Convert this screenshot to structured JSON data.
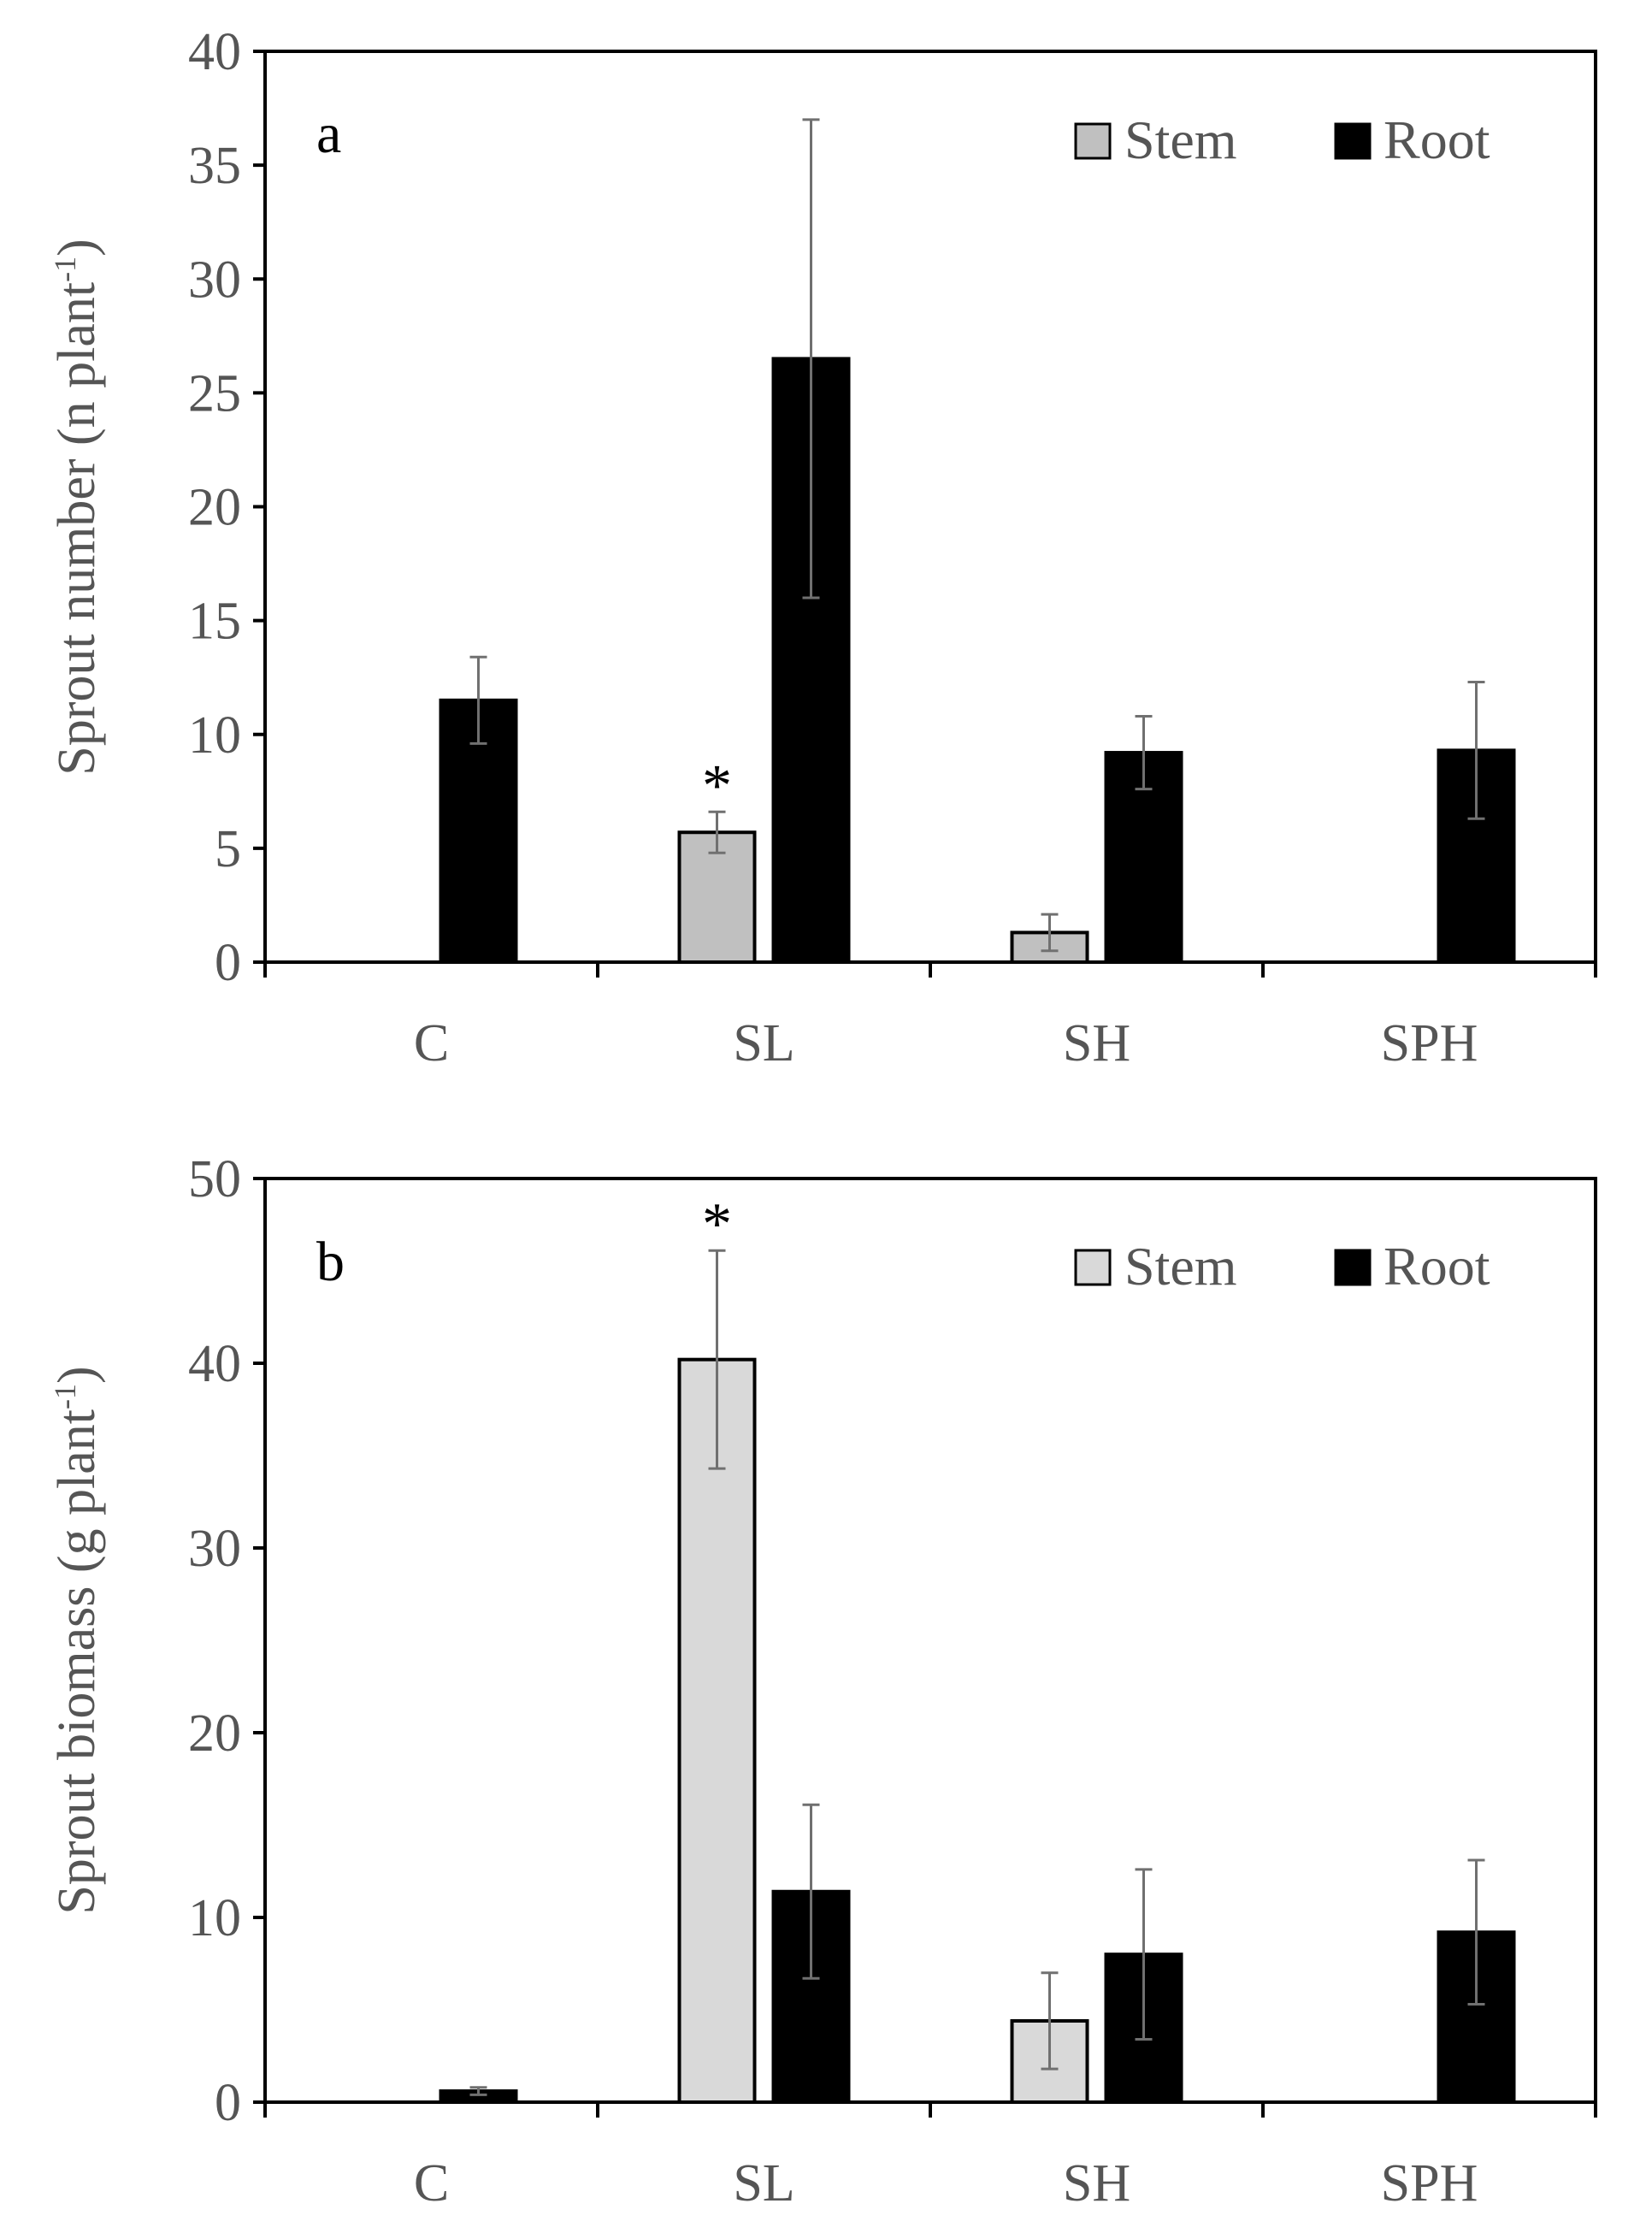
{
  "chart_data": [
    {
      "type": "bar",
      "panel": "a",
      "ylabel": "Sprout number (n plant",
      "ylabel_sup": "-1",
      "ylabel_close": ")",
      "ylim": [
        0,
        40
      ],
      "yticks": [
        0,
        5,
        10,
        15,
        20,
        25,
        30,
        35,
        40
      ],
      "categories": [
        "C",
        "SL",
        "SH",
        "SPH"
      ],
      "series": [
        {
          "name": "Stem",
          "color": "#c0c0c0",
          "values": [
            0,
            5.7,
            1.3,
            0
          ],
          "errors": [
            0,
            0.9,
            0.8,
            0
          ]
        },
        {
          "name": "Root",
          "color": "#000000",
          "values": [
            11.5,
            26.5,
            9.2,
            9.3
          ],
          "errors": [
            1.9,
            10.5,
            1.6,
            3.0
          ]
        }
      ],
      "annotations": [
        {
          "text": "*",
          "category": "SL",
          "series": "Stem"
        }
      ],
      "legend_position": "top-right"
    },
    {
      "type": "bar",
      "panel": "b",
      "ylabel": "Sprout biomass (g plant",
      "ylabel_sup": "-1",
      "ylabel_close": ")",
      "ylim": [
        0,
        50
      ],
      "yticks": [
        0,
        10,
        20,
        30,
        40,
        50
      ],
      "categories": [
        "C",
        "SL",
        "SH",
        "SPH"
      ],
      "series": [
        {
          "name": "Stem",
          "color": "#d9d9d9",
          "values": [
            0,
            40.2,
            4.4,
            0
          ],
          "errors": [
            0,
            5.9,
            2.6,
            0
          ]
        },
        {
          "name": "Root",
          "color": "#000000",
          "values": [
            0.6,
            11.4,
            8.0,
            9.2
          ],
          "errors": [
            0.2,
            4.7,
            4.6,
            3.9
          ]
        }
      ],
      "annotations": [
        {
          "text": "*",
          "category": "SL",
          "series": "Stem"
        }
      ],
      "legend_position": "top-right"
    }
  ]
}
